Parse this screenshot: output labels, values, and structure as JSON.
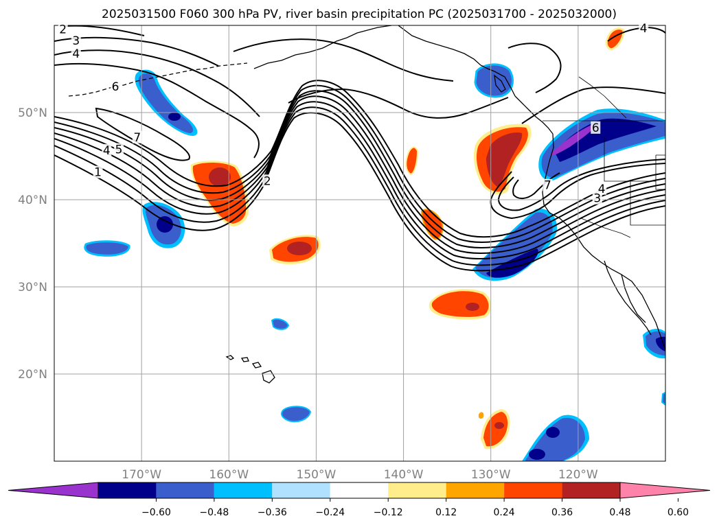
{
  "title": "2025031500 F060 300 hPa PV, river basin precipitation PC (2025031700 - 2025032000)",
  "map": {
    "extent": {
      "lon_min": -180,
      "lon_max": -110,
      "lat_min": 10,
      "lat_max": 60
    },
    "gridline_color": "#a0a0a0",
    "lat_labels": [
      {
        "lat": 50,
        "text": "50°N"
      },
      {
        "lat": 40,
        "text": "40°N"
      },
      {
        "lat": 30,
        "text": "30°N"
      },
      {
        "lat": 20,
        "text": "20°N"
      }
    ],
    "lon_labels": [
      {
        "lon": -170,
        "text": "170°W"
      },
      {
        "lon": -160,
        "text": "160°W"
      },
      {
        "lon": -150,
        "text": "150°W"
      },
      {
        "lon": -140,
        "text": "140°W"
      },
      {
        "lon": -130,
        "text": "130°W"
      },
      {
        "lon": -120,
        "text": "120°W"
      }
    ],
    "pv_contour_labels": [
      {
        "lon": -179,
        "lat": 59.5,
        "text": "2"
      },
      {
        "lon": -177.5,
        "lat": 58.2,
        "text": "3"
      },
      {
        "lon": -177.5,
        "lat": 56.7,
        "text": "4"
      },
      {
        "lon": -173,
        "lat": 52.9,
        "text": "6"
      },
      {
        "lon": -170.5,
        "lat": 47.1,
        "text": "7"
      },
      {
        "lon": -174,
        "lat": 45.6,
        "text": "4"
      },
      {
        "lon": -172.6,
        "lat": 45.7,
        "text": "5"
      },
      {
        "lon": -175,
        "lat": 43.1,
        "text": "1"
      },
      {
        "lon": -155.6,
        "lat": 42.1,
        "text": "2"
      },
      {
        "lon": -118,
        "lat": 48.2,
        "text": "6"
      },
      {
        "lon": -123.5,
        "lat": 41.6,
        "text": "7"
      },
      {
        "lon": -117.3,
        "lat": 41.2,
        "text": "4"
      },
      {
        "lon": -117.8,
        "lat": 40.1,
        "text": "3"
      },
      {
        "lon": -112.5,
        "lat": 59.6,
        "text": "4"
      }
    ]
  },
  "colorbar": {
    "colors": [
      "#9a32cd",
      "#00008b",
      "#3a5fcd",
      "#00bfff",
      "#b0e2ff",
      "#ffffff",
      "#ffec8b",
      "#ffa500",
      "#ff4500",
      "#b22222",
      "#ff82ab"
    ],
    "tick_labels": [
      "−0.60",
      "−0.48",
      "−0.36",
      "−0.24",
      "−0.12",
      "0.12",
      "0.24",
      "0.36",
      "0.48",
      "0.60"
    ]
  }
}
